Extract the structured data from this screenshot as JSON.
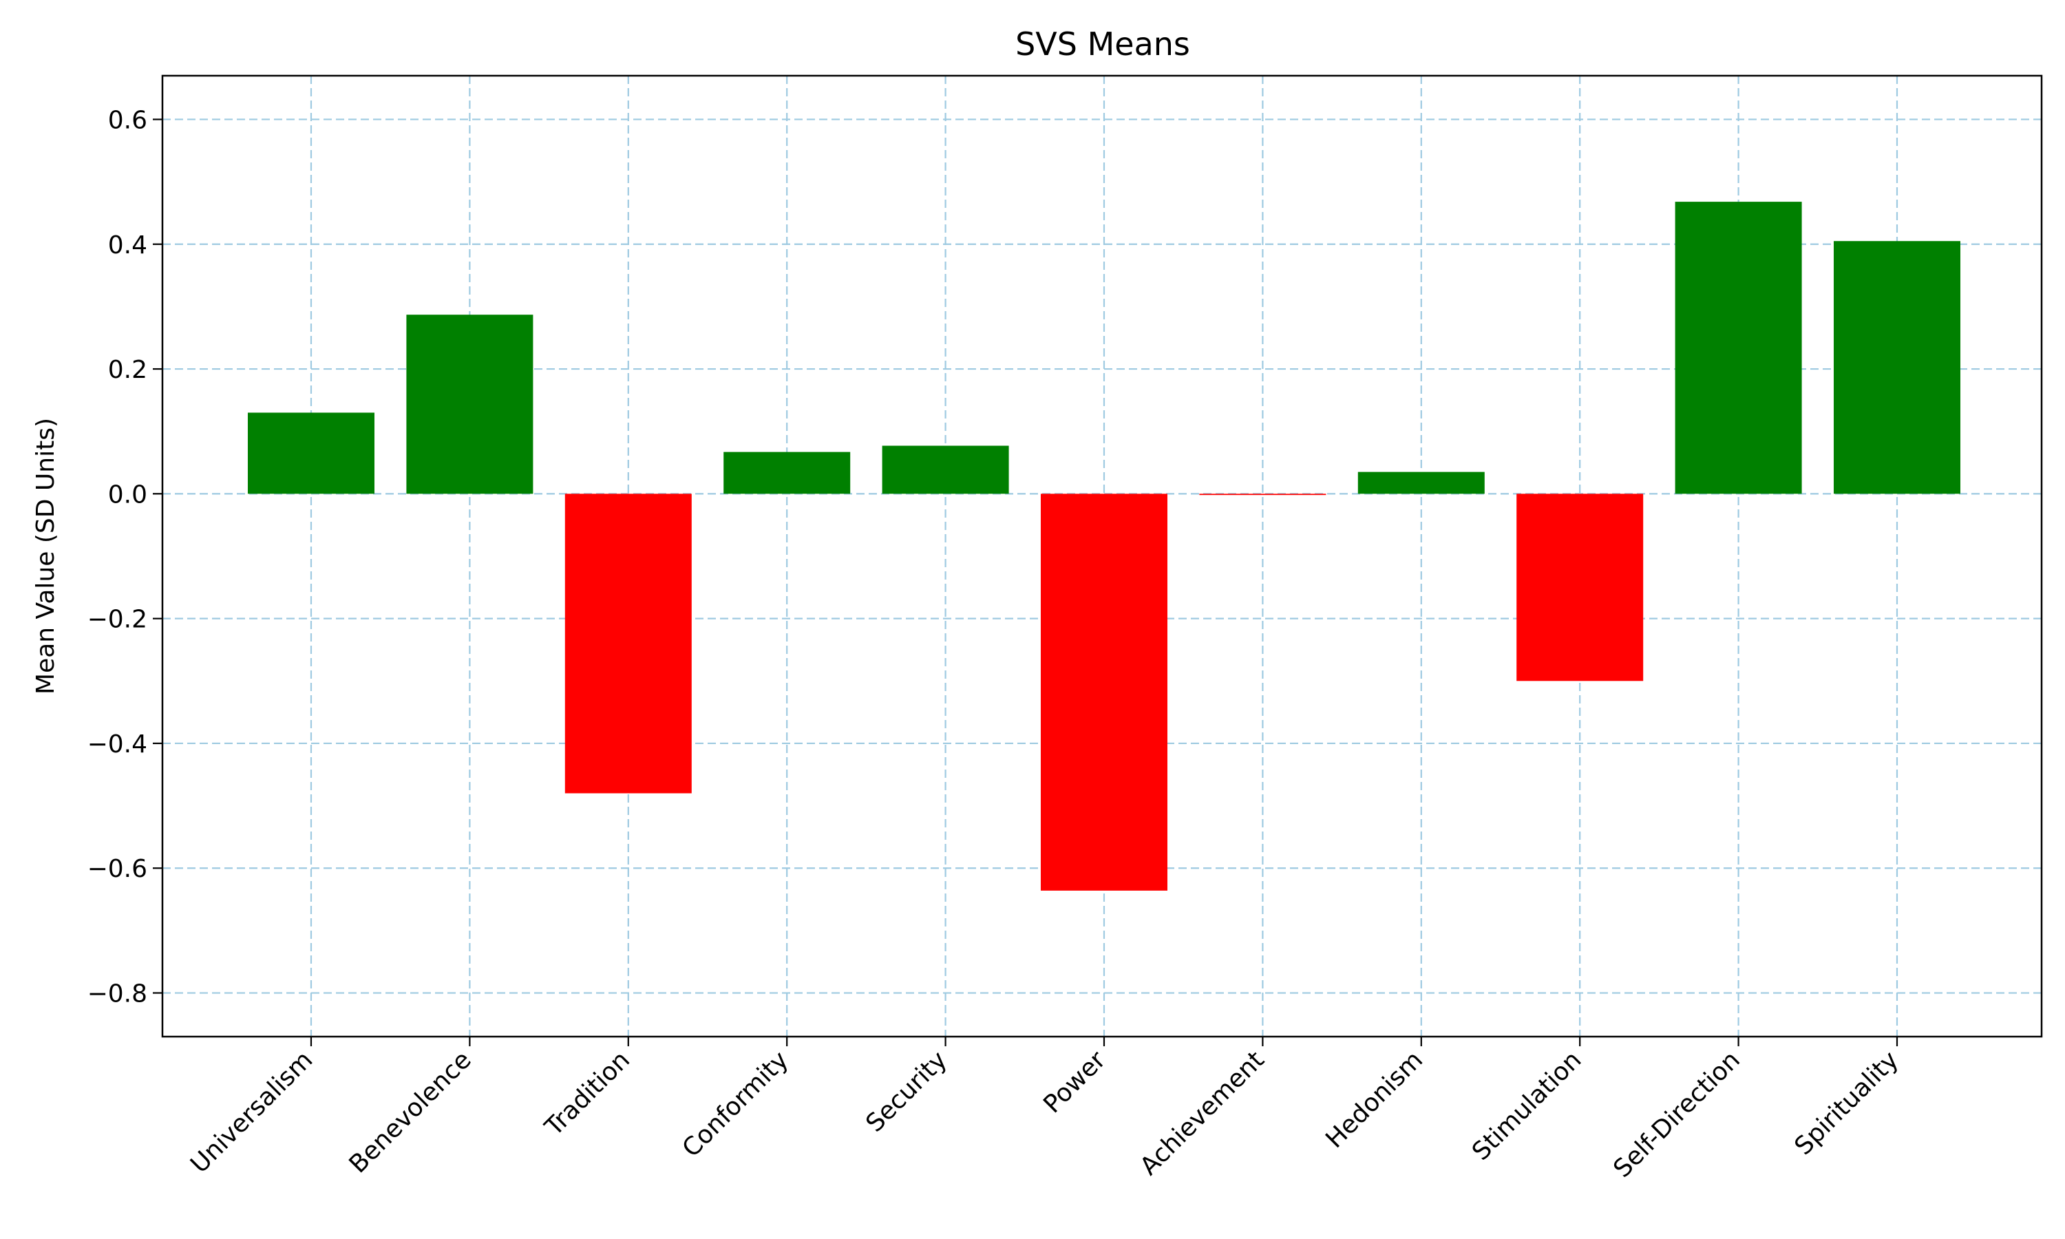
{
  "chart_data": {
    "type": "bar",
    "title": "SVS Means",
    "xlabel": "",
    "ylabel": "Mean Value (SD Units)",
    "categories": [
      "Universalism",
      "Benevolence",
      "Tradition",
      "Conformity",
      "Security",
      "Power",
      "Achievement",
      "Hedonism",
      "Stimulation",
      "Self-Direction",
      "Spirituality"
    ],
    "values": [
      0.13,
      0.287,
      -0.48,
      0.067,
      0.077,
      -0.636,
      -0.002,
      0.035,
      -0.3,
      0.468,
      0.405
    ],
    "ylim": [
      -0.87,
      0.67
    ],
    "yticks": [
      -0.8,
      -0.6,
      -0.4,
      -0.2,
      0.0,
      0.2,
      0.4,
      0.6
    ],
    "ytick_labels": [
      "−0.8",
      "−0.6",
      "−0.4",
      "−0.2",
      "0.0",
      "0.2",
      "0.4",
      "0.6"
    ],
    "grid": true,
    "colors": {
      "positive": "#008000",
      "negative": "#ff0000",
      "grid": "#9ecae1"
    }
  }
}
